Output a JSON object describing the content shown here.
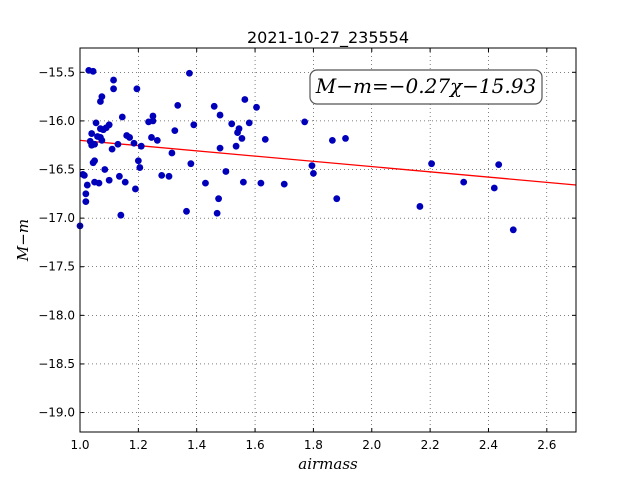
{
  "chart_data": {
    "type": "scatter",
    "title": "2021-10-27_235554",
    "xlabel": "airmass",
    "ylabel": "M−m",
    "annotation": "M−m=−0.27χ−15.93",
    "xlim": [
      1.0,
      2.7
    ],
    "ylim": [
      -15.25,
      -19.2
    ],
    "y_inverted": true,
    "grid": true,
    "x_ticks": [
      "1.0",
      "1.2",
      "1.4",
      "1.6",
      "1.8",
      "2.0",
      "2.2",
      "2.4",
      "2.6"
    ],
    "y_ticks": [
      "−15.5",
      "−16.0",
      "−16.5",
      "−17.0",
      "−17.5",
      "−18.0",
      "−18.5",
      "−19.0"
    ],
    "x_tick_values": [
      1.0,
      1.2,
      1.4,
      1.6,
      1.8,
      2.0,
      2.2,
      2.4,
      2.6
    ],
    "y_tick_values": [
      -15.5,
      -16.0,
      -16.5,
      -17.0,
      -17.5,
      -18.0,
      -18.5,
      -19.0
    ],
    "fit": {
      "slope": -0.27,
      "intercept": -15.93,
      "color": "#ff0000"
    },
    "point_color": "#0000bb",
    "points": [
      [
        1.0,
        -17.08
      ],
      [
        1.01,
        -16.55
      ],
      [
        1.015,
        -16.56
      ],
      [
        1.02,
        -16.75
      ],
      [
        1.02,
        -16.83
      ],
      [
        1.025,
        -16.66
      ],
      [
        1.03,
        -15.48
      ],
      [
        1.035,
        -16.21
      ],
      [
        1.04,
        -16.13
      ],
      [
        1.04,
        -16.25
      ],
      [
        1.045,
        -15.49
      ],
      [
        1.045,
        -16.43
      ],
      [
        1.05,
        -16.41
      ],
      [
        1.05,
        -16.63
      ],
      [
        1.05,
        -16.24
      ],
      [
        1.055,
        -16.02
      ],
      [
        1.06,
        -16.16
      ],
      [
        1.065,
        -16.64
      ],
      [
        1.07,
        -15.8
      ],
      [
        1.07,
        -16.08
      ],
      [
        1.07,
        -16.17
      ],
      [
        1.075,
        -15.75
      ],
      [
        1.075,
        -16.2
      ],
      [
        1.08,
        -16.09
      ],
      [
        1.085,
        -16.5
      ],
      [
        1.09,
        -16.07
      ],
      [
        1.1,
        -16.04
      ],
      [
        1.1,
        -16.61
      ],
      [
        1.11,
        -16.29
      ],
      [
        1.115,
        -15.58
      ],
      [
        1.115,
        -15.67
      ],
      [
        1.13,
        -16.24
      ],
      [
        1.135,
        -16.57
      ],
      [
        1.14,
        -16.97
      ],
      [
        1.145,
        -15.96
      ],
      [
        1.155,
        -16.63
      ],
      [
        1.16,
        -16.15
      ],
      [
        1.17,
        -16.17
      ],
      [
        1.185,
        -16.23
      ],
      [
        1.19,
        -16.7
      ],
      [
        1.195,
        -15.67
      ],
      [
        1.2,
        -16.41
      ],
      [
        1.205,
        -16.48
      ],
      [
        1.21,
        -16.26
      ],
      [
        1.235,
        -16.01
      ],
      [
        1.245,
        -16.17
      ],
      [
        1.25,
        -15.95
      ],
      [
        1.25,
        -16.0
      ],
      [
        1.265,
        -16.2
      ],
      [
        1.28,
        -16.56
      ],
      [
        1.305,
        -16.57
      ],
      [
        1.315,
        -16.33
      ],
      [
        1.325,
        -16.1
      ],
      [
        1.335,
        -15.84
      ],
      [
        1.365,
        -16.93
      ],
      [
        1.375,
        -15.51
      ],
      [
        1.38,
        -16.44
      ],
      [
        1.39,
        -16.04
      ],
      [
        1.43,
        -16.64
      ],
      [
        1.46,
        -15.85
      ],
      [
        1.47,
        -16.95
      ],
      [
        1.475,
        -16.8
      ],
      [
        1.48,
        -15.94
      ],
      [
        1.48,
        -16.28
      ],
      [
        1.5,
        -16.52
      ],
      [
        1.52,
        -16.03
      ],
      [
        1.535,
        -16.26
      ],
      [
        1.54,
        -16.12
      ],
      [
        1.545,
        -16.08
      ],
      [
        1.555,
        -16.18
      ],
      [
        1.56,
        -16.63
      ],
      [
        1.565,
        -15.78
      ],
      [
        1.58,
        -16.02
      ],
      [
        1.605,
        -15.86
      ],
      [
        1.62,
        -16.64
      ],
      [
        1.635,
        -16.19
      ],
      [
        1.7,
        -16.65
      ],
      [
        1.77,
        -16.01
      ],
      [
        1.795,
        -16.46
      ],
      [
        1.8,
        -16.54
      ],
      [
        1.865,
        -16.2
      ],
      [
        1.88,
        -16.8
      ],
      [
        1.91,
        -16.18
      ],
      [
        2.165,
        -16.88
      ],
      [
        2.205,
        -16.44
      ],
      [
        2.315,
        -16.63
      ],
      [
        2.42,
        -16.69
      ],
      [
        2.435,
        -16.45
      ],
      [
        2.485,
        -17.12
      ]
    ]
  }
}
